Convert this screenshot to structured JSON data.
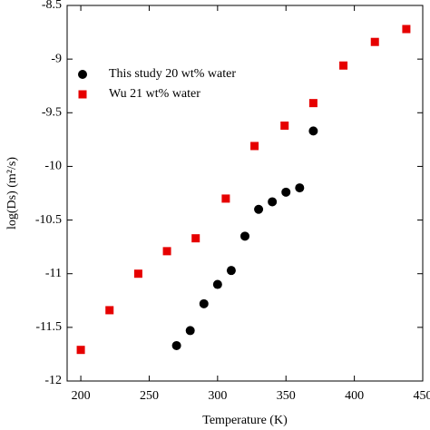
{
  "chart_data": {
    "type": "scatter",
    "x_label": "Temperature (K)",
    "y_label": "log(Ds) (m²/s)",
    "xlim": [
      190,
      450
    ],
    "ylim": [
      -12,
      -8.5
    ],
    "xticks": [
      200,
      250,
      300,
      350,
      400,
      450
    ],
    "yticks": [
      -12,
      -11.5,
      -11,
      -10.5,
      -10,
      -9.5,
      -9,
      -8.5
    ],
    "legend": "upper-left",
    "series": [
      {
        "name": "This study 20 wt% water",
        "color": "#000000",
        "marker": "circle",
        "x": [
          270,
          280,
          290,
          300,
          310,
          320,
          330,
          340,
          350,
          360,
          370
        ],
        "values": [
          -11.67,
          -11.53,
          -11.28,
          -11.1,
          -10.97,
          -10.65,
          -10.4,
          -10.33,
          -10.24,
          -10.2,
          -9.67
        ]
      },
      {
        "name": "Wu 21 wt% water",
        "color": "#e60000",
        "marker": "square",
        "x": [
          200,
          221,
          242,
          263,
          284,
          306,
          327,
          349,
          370,
          392,
          415,
          438
        ],
        "values": [
          -11.71,
          -11.34,
          -11.0,
          -10.79,
          -10.67,
          -10.3,
          -9.81,
          -9.62,
          -9.41,
          -9.06,
          -8.84,
          -8.72
        ]
      }
    ]
  }
}
